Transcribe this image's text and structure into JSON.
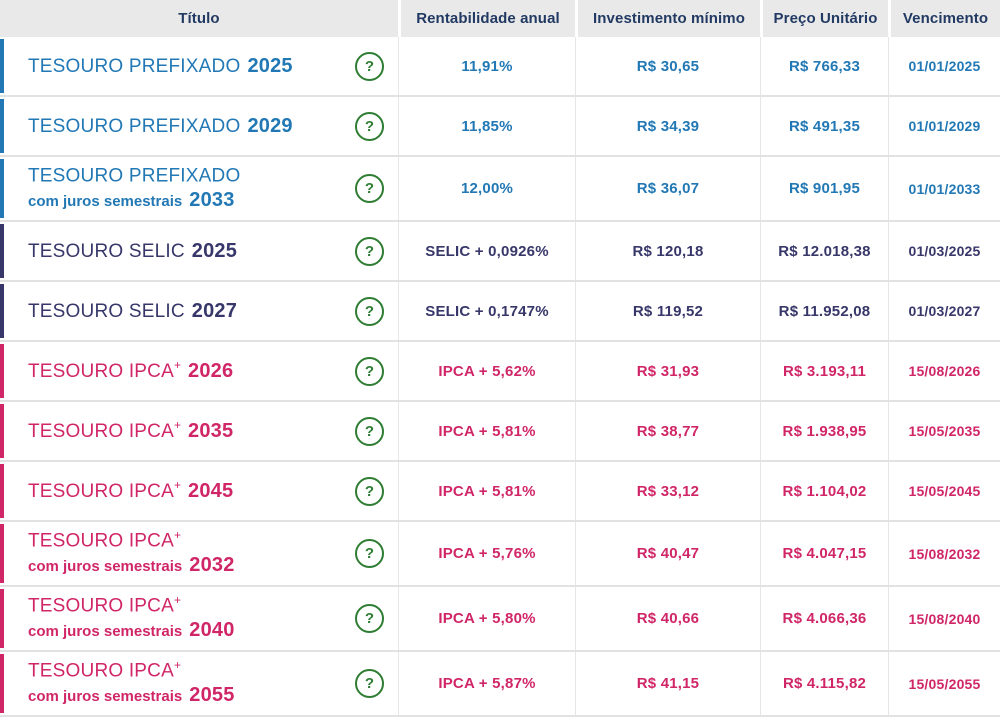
{
  "header": {
    "columns": [
      {
        "label": "Título"
      },
      {
        "label": "Rentabilidade anual"
      },
      {
        "label": "Investimento mínimo"
      },
      {
        "label": "Preço Unitário"
      },
      {
        "label": "Vencimento"
      }
    ]
  },
  "help_icon": "?",
  "colors": {
    "prefixado": "#2178b5",
    "selic": "#37376a",
    "ipca": "#d02667",
    "header_text": "#223a63",
    "header_bg": "#e9e9e9",
    "help_green": "#2e7d33",
    "row_border": "#e2e2e2"
  },
  "rows": [
    {
      "category": "prefixado",
      "title": "TESOURO PREFIXADO",
      "sup": "",
      "subtitle": "",
      "year": "2025",
      "rate": "11,91%",
      "min_investment": "R$ 30,65",
      "unit_price": "R$ 766,33",
      "maturity": "01/01/2025"
    },
    {
      "category": "prefixado",
      "title": "TESOURO PREFIXADO",
      "sup": "",
      "subtitle": "",
      "year": "2029",
      "rate": "11,85%",
      "min_investment": "R$ 34,39",
      "unit_price": "R$ 491,35",
      "maturity": "01/01/2029"
    },
    {
      "category": "prefixado",
      "title": "TESOURO PREFIXADO",
      "sup": "",
      "subtitle": "com juros semestrais",
      "year": "2033",
      "rate": "12,00%",
      "min_investment": "R$ 36,07",
      "unit_price": "R$ 901,95",
      "maturity": "01/01/2033"
    },
    {
      "category": "selic",
      "title": "TESOURO SELIC",
      "sup": "",
      "subtitle": "",
      "year": "2025",
      "rate": "SELIC + 0,0926%",
      "min_investment": "R$ 120,18",
      "unit_price": "R$ 12.018,38",
      "maturity": "01/03/2025"
    },
    {
      "category": "selic",
      "title": "TESOURO SELIC",
      "sup": "",
      "subtitle": "",
      "year": "2027",
      "rate": "SELIC + 0,1747%",
      "min_investment": "R$ 119,52",
      "unit_price": "R$ 11.952,08",
      "maturity": "01/03/2027"
    },
    {
      "category": "ipca",
      "title": "TESOURO IPCA",
      "sup": "+",
      "subtitle": "",
      "year": "2026",
      "rate": "IPCA + 5,62%",
      "min_investment": "R$ 31,93",
      "unit_price": "R$ 3.193,11",
      "maturity": "15/08/2026"
    },
    {
      "category": "ipca",
      "title": "TESOURO IPCA",
      "sup": "+",
      "subtitle": "",
      "year": "2035",
      "rate": "IPCA + 5,81%",
      "min_investment": "R$ 38,77",
      "unit_price": "R$ 1.938,95",
      "maturity": "15/05/2035"
    },
    {
      "category": "ipca",
      "title": "TESOURO IPCA",
      "sup": "+",
      "subtitle": "",
      "year": "2045",
      "rate": "IPCA + 5,81%",
      "min_investment": "R$ 33,12",
      "unit_price": "R$ 1.104,02",
      "maturity": "15/05/2045"
    },
    {
      "category": "ipca",
      "title": "TESOURO IPCA",
      "sup": "+",
      "subtitle": "com juros semestrais",
      "year": "2032",
      "rate": "IPCA + 5,76%",
      "min_investment": "R$ 40,47",
      "unit_price": "R$ 4.047,15",
      "maturity": "15/08/2032"
    },
    {
      "category": "ipca",
      "title": "TESOURO IPCA",
      "sup": "+",
      "subtitle": "com juros semestrais",
      "year": "2040",
      "rate": "IPCA + 5,80%",
      "min_investment": "R$ 40,66",
      "unit_price": "R$ 4.066,36",
      "maturity": "15/08/2040"
    },
    {
      "category": "ipca",
      "title": "TESOURO IPCA",
      "sup": "+",
      "subtitle": "com juros semestrais",
      "year": "2055",
      "rate": "IPCA + 5,87%",
      "min_investment": "R$ 41,15",
      "unit_price": "R$ 4.115,82",
      "maturity": "15/05/2055"
    }
  ]
}
